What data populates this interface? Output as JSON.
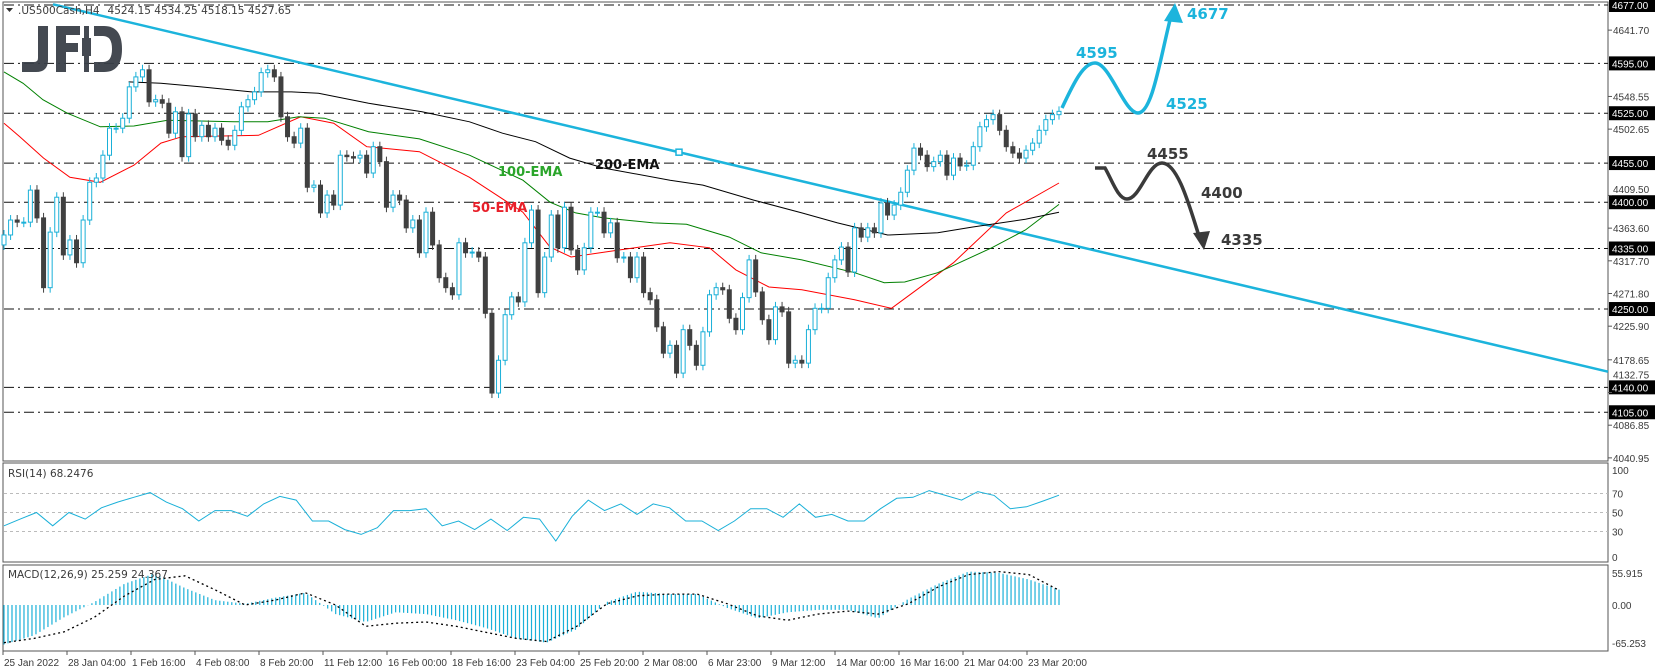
{
  "header": {
    "symbol": ".US500Cash,H4",
    "ohlc": "4524.15 4534.25 4518.15 4527.65"
  },
  "logo": "JFD",
  "colors": {
    "bull": "#1ab0d8",
    "bear": "#404040",
    "ema50": "#ff0000",
    "ema100": "#008000",
    "ema200": "#000000",
    "trendline": "#1cb4dc",
    "scenario_up": "#1cb4dc",
    "scenario_down": "#3a3a3a",
    "rsi": "#1ab0d8",
    "macd_hist": "#1ab0d8"
  },
  "chart_data": [
    {
      "type": "candlestick",
      "instrument": ".US500Cash",
      "timeframe": "H4",
      "ylim": [
        4040.95,
        4677
      ],
      "closes": [
        4354,
        4375,
        4372,
        4372,
        4417,
        4378,
        4280,
        4358,
        4407,
        4326,
        4347,
        4315,
        4375,
        4428,
        4434,
        4466,
        4504,
        4504,
        4518,
        4562,
        4576,
        4586,
        4541,
        4544,
        4539,
        4497,
        4527,
        4464,
        4524,
        4492,
        4508,
        4492,
        4504,
        4487,
        4480,
        4501,
        4534,
        4544,
        4555,
        4582,
        4586,
        4576,
        4520,
        4492,
        4483,
        4504,
        4421,
        4424,
        4385,
        4410,
        4396,
        4466,
        4464,
        4462,
        4466,
        4441,
        4478,
        4457,
        4393,
        4410,
        4403,
        4364,
        4375,
        4329,
        4386,
        4340,
        4294,
        4280,
        4270,
        4343,
        4329,
        4330,
        4323,
        4244,
        4132,
        4178,
        4242,
        4267,
        4260,
        4343,
        4389,
        4273,
        4323,
        4382,
        4336,
        4393,
        4333,
        4305,
        4336,
        4386,
        4386,
        4357,
        4371,
        4322,
        4323,
        4294,
        4323,
        4273,
        4263,
        4225,
        4188,
        4199,
        4160,
        4221,
        4199,
        4171,
        4218,
        4270,
        4280,
        4277,
        4237,
        4221,
        4266,
        4319,
        4274,
        4235,
        4207,
        4253,
        4246,
        4174,
        4178,
        4174,
        4221,
        4251,
        4251,
        4294,
        4319,
        4337,
        4302,
        4364,
        4351,
        4364,
        4357,
        4399,
        4382,
        4396,
        4414,
        4445,
        4476,
        4466,
        4450,
        4457,
        4466,
        4438,
        4462,
        4451,
        4452,
        4478,
        4506,
        4516,
        4523,
        4501,
        4478,
        4469,
        4462,
        4473,
        4483,
        4501,
        4516,
        4523,
        4527.65
      ],
      "first_open": 4340,
      "ema": [
        {
          "name": "50-EMA",
          "color_key": "ema50",
          "points": [
            [
              0,
              4511
            ],
            [
              2.4,
              4492
            ],
            [
              6,
              4462
            ],
            [
              10,
              4435
            ],
            [
              14.6,
              4428
            ],
            [
              19.7,
              4452
            ],
            [
              23.8,
              4483
            ],
            [
              27,
              4492
            ],
            [
              38.6,
              4494
            ],
            [
              45,
              4520
            ],
            [
              50,
              4511
            ],
            [
              55,
              4478
            ],
            [
              63,
              4471
            ],
            [
              70.6,
              4435
            ],
            [
              78.7,
              4386
            ],
            [
              82.8,
              4337
            ],
            [
              86,
              4323
            ],
            [
              93.4,
              4333
            ],
            [
              101,
              4343
            ],
            [
              107,
              4336
            ],
            [
              111,
              4305
            ],
            [
              116,
              4281
            ],
            [
              121,
              4277
            ],
            [
              129,
              4263
            ],
            [
              134.6,
              4251
            ],
            [
              144,
              4315
            ],
            [
              152,
              4385
            ],
            [
              160,
              4427
            ]
          ]
        },
        {
          "name": "100-EMA",
          "color_key": "ema100",
          "points": [
            [
              0,
              4583
            ],
            [
              2.9,
              4567
            ],
            [
              5.9,
              4544
            ],
            [
              9.6,
              4525
            ],
            [
              14.6,
              4506
            ],
            [
              19.7,
              4507
            ],
            [
              24.8,
              4515
            ],
            [
              34.9,
              4513
            ],
            [
              40,
              4513
            ],
            [
              44.7,
              4520
            ],
            [
              48.6,
              4518
            ],
            [
              55.3,
              4499
            ],
            [
              63,
              4489
            ],
            [
              70.6,
              4466
            ],
            [
              78.7,
              4431
            ],
            [
              82.8,
              4400
            ],
            [
              86.7,
              4385
            ],
            [
              90.9,
              4378
            ],
            [
              98.5,
              4371
            ],
            [
              103.5,
              4369
            ],
            [
              110,
              4351
            ],
            [
              114.8,
              4329
            ],
            [
              121,
              4319
            ],
            [
              129,
              4301
            ],
            [
              133.5,
              4287
            ],
            [
              136.6,
              4288
            ],
            [
              141.6,
              4301
            ],
            [
              149.8,
              4336
            ],
            [
              154.9,
              4361
            ],
            [
              160,
              4397
            ]
          ]
        },
        {
          "name": "200-EMA",
          "color_key": "ema200",
          "points": [
            [
              18.9,
              4569
            ],
            [
              23.8,
              4567
            ],
            [
              29.9,
              4562
            ],
            [
              37.5,
              4555
            ],
            [
              43.6,
              4555
            ],
            [
              47.7,
              4553
            ],
            [
              55.3,
              4539
            ],
            [
              63.4,
              4527
            ],
            [
              70.6,
              4513
            ],
            [
              75.6,
              4497
            ],
            [
              80.6,
              4485
            ],
            [
              85.8,
              4462
            ],
            [
              90.9,
              4448
            ],
            [
              101,
              4431
            ],
            [
              106,
              4424
            ],
            [
              113.7,
              4403
            ],
            [
              121,
              4385
            ],
            [
              126.4,
              4371
            ],
            [
              134,
              4354
            ],
            [
              141.6,
              4357
            ],
            [
              146.8,
              4365
            ],
            [
              154.9,
              4376
            ],
            [
              160,
              4386
            ]
          ]
        }
      ],
      "trendline": {
        "start_price": 4678,
        "end_price": 4162
      },
      "levels": [
        "4677.00",
        "4595.00",
        "4525.00",
        "4455.00",
        "4400.00",
        "4335.00",
        "4250.00",
        "4140.00",
        "4105.00"
      ],
      "price_ticks": [
        "4641.70",
        "4548.55",
        "4502.65",
        "4409.50",
        "4363.60",
        "4317.70",
        "4271.80",
        "4225.90",
        "4178.65",
        "4132.75",
        "4086.85",
        "4040.95"
      ],
      "time_ticks": [
        "25 Jan 2022",
        "28 Jan 04:00",
        "1 Feb 16:00",
        "4 Feb 08:00",
        "8 Feb 20:00",
        "11 Feb 12:00",
        "16 Feb 00:00",
        "18 Feb 16:00",
        "23 Feb 04:00",
        "25 Feb 20:00",
        "2 Mar 08:00",
        "6 Mar 23:00",
        "9 Mar 12:00",
        "14 Mar 00:00",
        "16 Mar 16:00",
        "21 Mar 04:00",
        "23 Mar 20:00"
      ],
      "annotations": {
        "ema50": "50-EMA",
        "ema100": "100-EMA",
        "ema200": "200-EMA",
        "up_scenario": [
          "4595",
          "4525",
          "4677"
        ],
        "down_scenario": [
          "4455",
          "4400",
          "4335"
        ]
      }
    },
    {
      "type": "line",
      "title": "RSI(14) 68.2476",
      "ylim": [
        0,
        100
      ],
      "levels": [
        70,
        50,
        30
      ],
      "tick_labels": [
        "100",
        "70",
        "50",
        "30",
        "0"
      ],
      "values": [
        36,
        43,
        50,
        36,
        50,
        43,
        55,
        61,
        66,
        71,
        61,
        54,
        41,
        52,
        52,
        46,
        59,
        67,
        63,
        41,
        41,
        32,
        27,
        34,
        52,
        52,
        54,
        36,
        41,
        32,
        43,
        31,
        45,
        43,
        20,
        46,
        63,
        52,
        59,
        48,
        59,
        55,
        41,
        41,
        31,
        41,
        54,
        54,
        45,
        59,
        45,
        48,
        41,
        41,
        54,
        65,
        66,
        73,
        68,
        63,
        72,
        68,
        54,
        56,
        62,
        68.2476
      ]
    },
    {
      "type": "bar+line",
      "title": "MACD(12,26,9) 25.259 24.367",
      "ylim": [
        -65.253,
        55.915
      ],
      "tick_labels": [
        "55.915",
        "0.00",
        "-65.253"
      ],
      "histogram": [
        -65,
        -50,
        -20,
        5,
        35,
        52,
        28,
        8,
        2,
        12,
        20,
        -15,
        -28,
        -12,
        -15,
        -25,
        -38,
        -55,
        -62,
        -40,
        5,
        22,
        18,
        18,
        -5,
        -22,
        -12,
        -8,
        -8,
        -22,
        10,
        35,
        55,
        53,
        42,
        25.259
      ],
      "signal": [
        -62,
        -55,
        -44,
        -20,
        15,
        42,
        48,
        25,
        0,
        8,
        20,
        0,
        -35,
        -30,
        -28,
        -35,
        -45,
        -55,
        -60,
        -35,
        2,
        15,
        18,
        18,
        2,
        -18,
        -25,
        -15,
        -10,
        -15,
        2,
        30,
        50,
        55,
        50,
        24.367
      ]
    }
  ]
}
